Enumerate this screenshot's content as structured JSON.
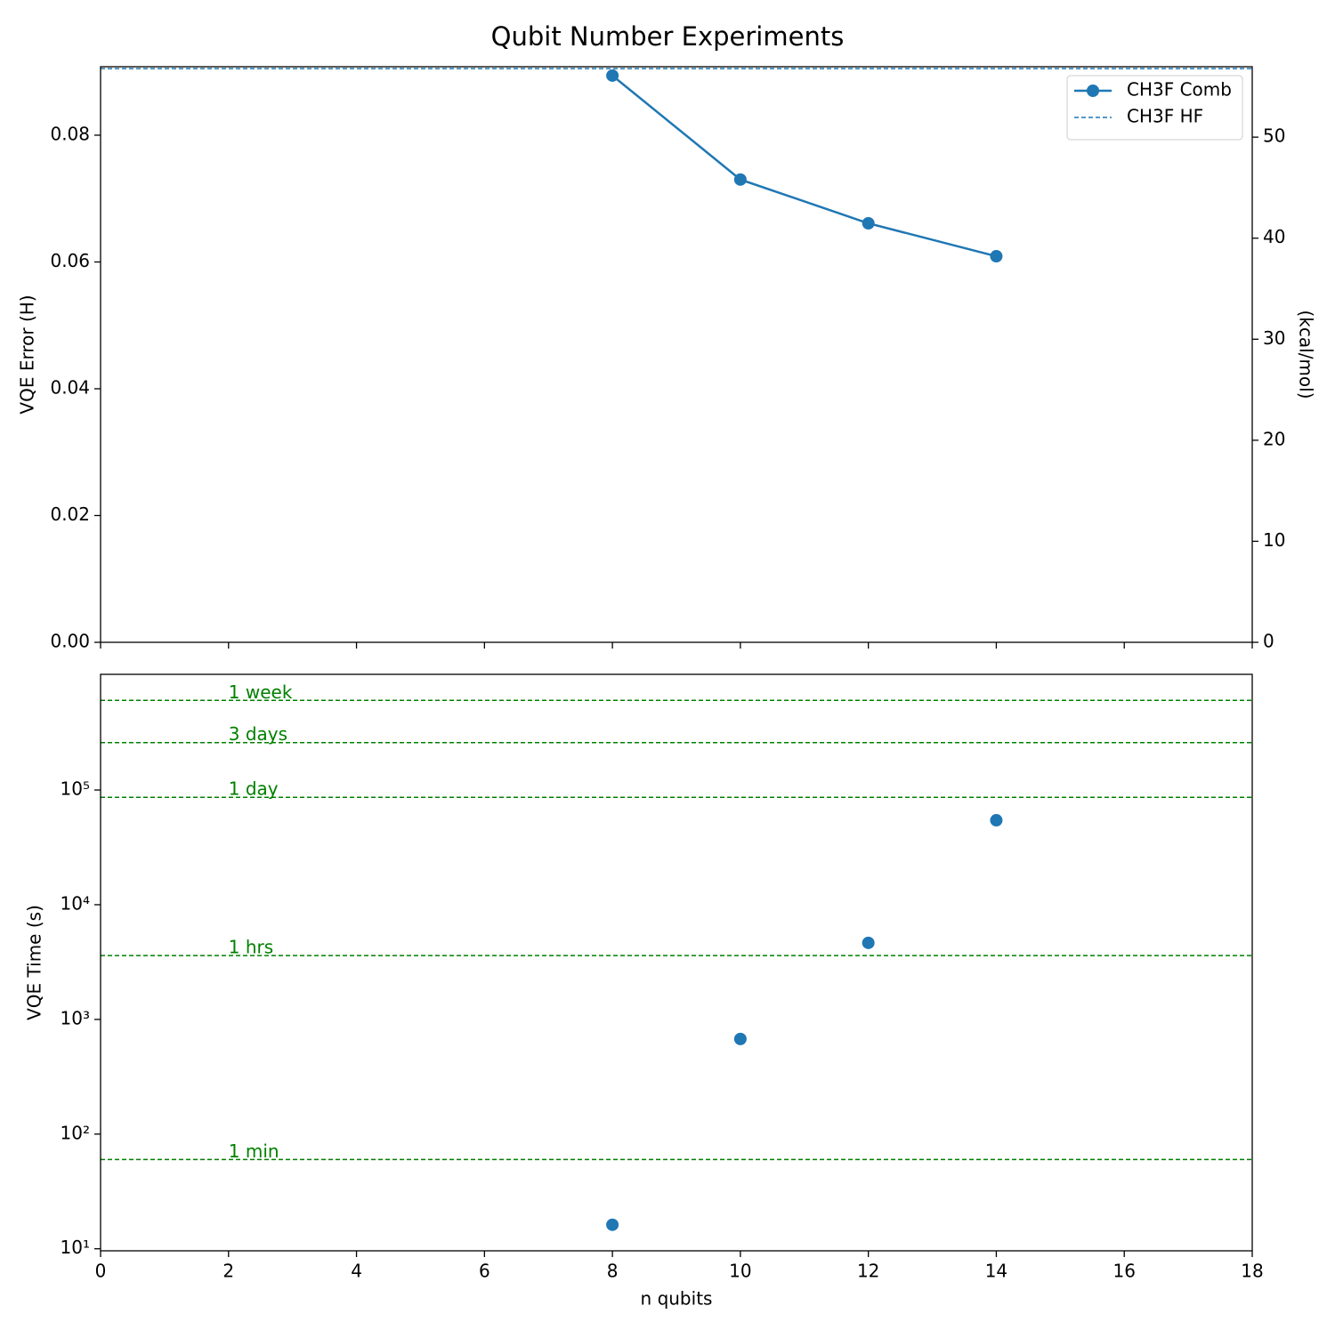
{
  "chart_data": [
    {
      "type": "line",
      "title": "Qubit Number Experiments",
      "ylabel": "VQE Error (H)",
      "y2label": "(kcal/mol)",
      "x": [
        8,
        10,
        12,
        14
      ],
      "xlim": [
        0,
        18
      ],
      "xticks": [
        0,
        2,
        4,
        6,
        8,
        10,
        12,
        14,
        16,
        18
      ],
      "ylim": [
        0,
        0.0908
      ],
      "yticks": [
        {
          "value": 0,
          "label": "0.00"
        },
        {
          "value": 0.02,
          "label": "0.02"
        },
        {
          "value": 0.04,
          "label": "0.04"
        },
        {
          "value": 0.06,
          "label": "0.06"
        },
        {
          "value": 0.08,
          "label": "0.08"
        }
      ],
      "y2lim": [
        0,
        56.97
      ],
      "y2ticks": [
        0,
        10,
        20,
        30,
        40,
        50
      ],
      "series": [
        {
          "name": "CH3F Comb",
          "color": "#1f77b4",
          "values": [
            0.0894,
            0.073,
            0.0661,
            0.0609
          ]
        }
      ],
      "reference_lines": [
        {
          "name": "CH3F HF",
          "color": "#1f77b4",
          "value": 0.0905
        }
      ],
      "legend": "upper right"
    },
    {
      "type": "scatter",
      "xlabel": "n qubits",
      "ylabel": "VQE Time (s)",
      "log_scale_y": true,
      "x": [
        8,
        10,
        12,
        14
      ],
      "values": [
        16.2,
        675,
        4650,
        54500
      ],
      "color": "#1f77b4",
      "xlim": [
        0,
        18
      ],
      "xticks": [
        0,
        2,
        4,
        6,
        8,
        10,
        12,
        14,
        16,
        18
      ],
      "ylim": [
        9.6,
        1020000
      ],
      "yticks": [
        {
          "value": 10,
          "label": "10¹"
        },
        {
          "value": 100,
          "label": "10²"
        },
        {
          "value": 1000,
          "label": "10³"
        },
        {
          "value": 10000,
          "label": "10⁴"
        },
        {
          "value": 100000,
          "label": "10⁵"
        }
      ],
      "hlines": [
        {
          "label": "1 week",
          "value": 604800
        },
        {
          "label": "3 days",
          "value": 259200
        },
        {
          "label": "1 day",
          "value": 86400
        },
        {
          "label": "1 hrs",
          "value": 3600
        },
        {
          "label": "1 min",
          "value": 60
        }
      ],
      "hline_color": "green",
      "hline_label_x": 2
    }
  ]
}
